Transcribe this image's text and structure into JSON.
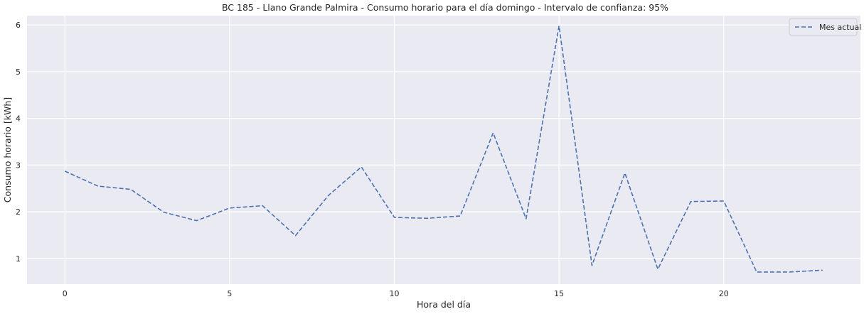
{
  "chart_data": {
    "type": "line",
    "title": "BC 185 - Llano Grande Palmira - Consumo horario para el día domingo - Intervalo de confianza: 95%",
    "xlabel": "Hora del día",
    "ylabel": "Consumo horario [kWh]",
    "x": [
      0,
      1,
      2,
      3,
      4,
      5,
      6,
      7,
      8,
      9,
      10,
      11,
      12,
      13,
      14,
      15,
      16,
      17,
      18,
      19,
      20,
      21,
      22,
      23
    ],
    "xlim": [
      -1.15,
      24.15
    ],
    "ylim": [
      0.45,
      6.2
    ],
    "xticks": [
      0,
      5,
      10,
      15,
      20
    ],
    "yticks": [
      1,
      2,
      3,
      4,
      5,
      6
    ],
    "xtick_labels": [
      "0",
      "5",
      "10",
      "15",
      "20"
    ],
    "ytick_labels": [
      "1",
      "2",
      "3",
      "4",
      "5",
      "6"
    ],
    "grid": true,
    "legend_position": "top-right",
    "series": [
      {
        "name": "Mes actual",
        "style": "dashed",
        "color": "#4c72b0",
        "values": [
          2.87,
          2.55,
          2.48,
          1.99,
          1.81,
          2.08,
          2.13,
          1.49,
          2.35,
          2.96,
          1.88,
          1.86,
          1.91,
          3.69,
          1.85,
          5.98,
          0.85,
          2.83,
          0.77,
          2.22,
          2.23,
          0.71,
          0.71,
          0.75
        ]
      }
    ]
  },
  "colors": {
    "plot_background": "#eaeaf2",
    "grid": "#ffffff",
    "text": "#262626"
  }
}
